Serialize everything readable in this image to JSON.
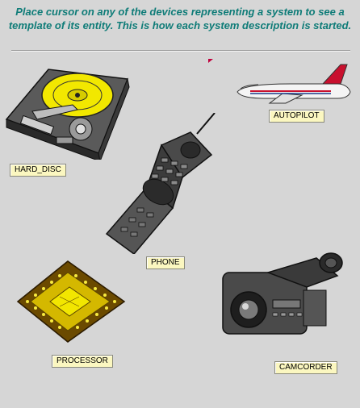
{
  "header": {
    "instruction": "Place cursor on any of the devices representing a system to see a template of its entity. This is how each system description is started."
  },
  "colors": {
    "title": "#0f7c78",
    "label_bg": "#fbf7c0",
    "background": "#d6d6d6"
  },
  "devices": [
    {
      "label": "HARD_DISC",
      "icon": "hard-disc-icon"
    },
    {
      "label": "AUTOPILOT",
      "icon": "airplane-icon"
    },
    {
      "label": "PHONE",
      "icon": "mobile-phone-icon"
    },
    {
      "label": "PROCESSOR",
      "icon": "processor-chip-icon"
    },
    {
      "label": "CAMCORDER",
      "icon": "camcorder-icon"
    }
  ]
}
